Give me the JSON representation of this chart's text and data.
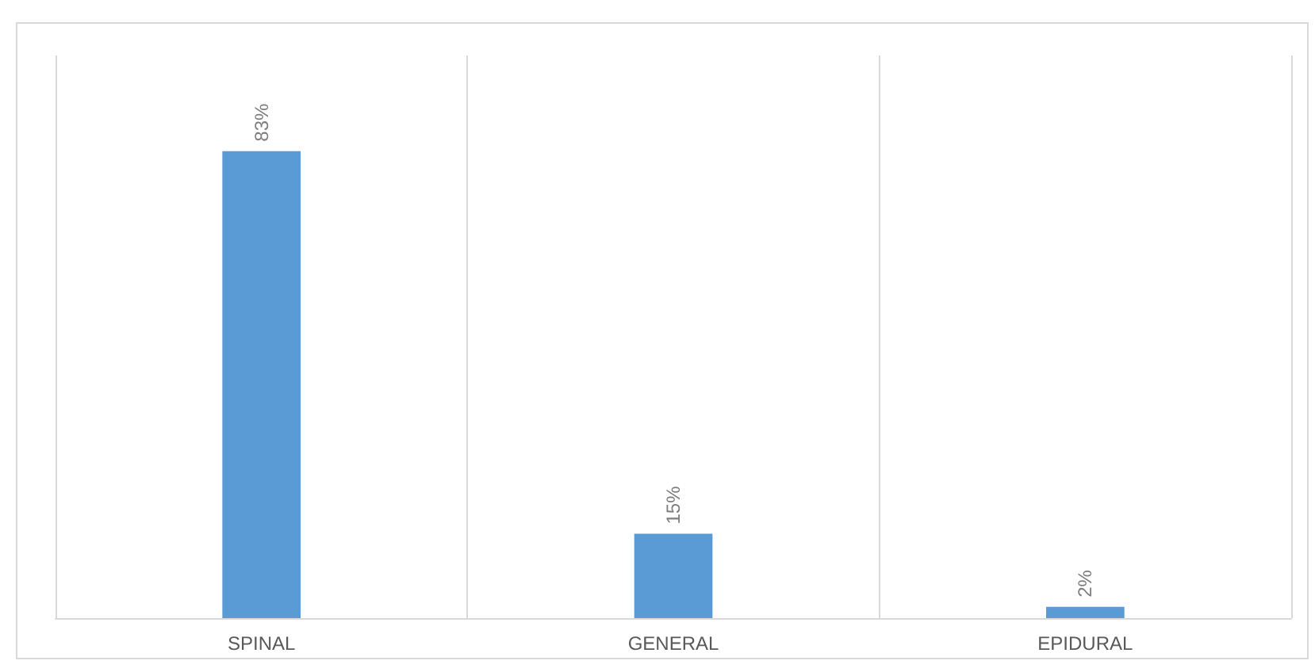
{
  "chart_data": {
    "type": "bar",
    "categories": [
      "SPINAL",
      "GENERAL",
      "EPIDURAL"
    ],
    "values": [
      83,
      15,
      2
    ],
    "value_labels": [
      "83%",
      "15%",
      "2%"
    ],
    "color": "#5b9bd5",
    "grid": "x"
  }
}
